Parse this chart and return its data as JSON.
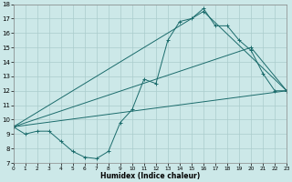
{
  "xlabel": "Humidex (Indice chaleur)",
  "xlim": [
    0,
    23
  ],
  "ylim": [
    7,
    18
  ],
  "xticks": [
    0,
    1,
    2,
    3,
    4,
    5,
    6,
    7,
    8,
    9,
    10,
    11,
    12,
    13,
    14,
    15,
    16,
    17,
    18,
    19,
    20,
    21,
    22,
    23
  ],
  "yticks": [
    7,
    8,
    9,
    10,
    11,
    12,
    13,
    14,
    15,
    16,
    17,
    18
  ],
  "bg_color": "#cce8e8",
  "grid_color": "#aacccc",
  "line_color": "#1a6b6b",
  "line1_x": [
    0,
    1,
    2,
    3,
    4,
    5,
    6,
    7,
    8,
    9,
    10,
    11,
    12,
    13,
    14,
    15,
    16,
    17,
    18,
    19,
    20,
    21,
    22,
    23
  ],
  "line1_y": [
    9.5,
    9.0,
    9.2,
    9.2,
    8.5,
    7.8,
    7.4,
    7.3,
    7.8,
    9.8,
    10.7,
    12.8,
    12.5,
    15.5,
    16.8,
    17.0,
    17.7,
    16.5,
    16.5,
    15.5,
    14.8,
    13.2,
    12.0,
    12.0
  ],
  "line2_x": [
    0,
    23
  ],
  "line2_y": [
    9.5,
    12.0
  ],
  "line3_x": [
    0,
    20,
    23
  ],
  "line3_y": [
    9.5,
    15.0,
    12.0
  ],
  "line4_x": [
    0,
    16,
    23
  ],
  "line4_y": [
    9.5,
    17.5,
    12.0
  ]
}
